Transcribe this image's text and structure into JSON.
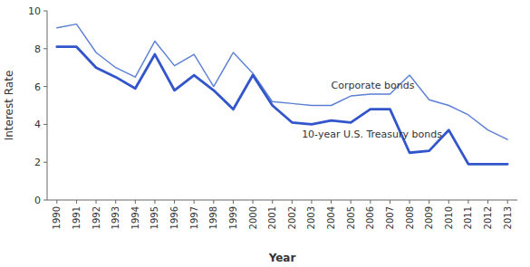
{
  "chart_data": {
    "type": "line",
    "x": [
      1990,
      1991,
      1992,
      1993,
      1994,
      1995,
      1996,
      1997,
      1998,
      1999,
      2000,
      2001,
      2002,
      2003,
      2004,
      2005,
      2006,
      2007,
      2008,
      2009,
      2010,
      2011,
      2012,
      2013
    ],
    "series": [
      {
        "color": "#5b7fd4",
        "values": [
          9.1,
          9.3,
          7.8,
          7.0,
          6.5,
          8.4,
          7.1,
          7.7,
          6.0,
          7.8,
          6.7,
          5.2,
          5.1,
          5.0,
          5.0,
          5.5,
          5.6,
          5.6,
          6.6,
          5.3,
          5.0,
          4.5,
          3.7,
          3.2
        ]
      },
      {
        "color": "#3355cc",
        "values": [
          8.1,
          8.1,
          7.0,
          6.5,
          5.9,
          7.7,
          5.8,
          6.6,
          5.8,
          4.8,
          6.6,
          5.0,
          4.1,
          4.0,
          4.2,
          4.1,
          4.8,
          4.8,
          2.5,
          2.6,
          3.7,
          1.9,
          1.9,
          1.9
        ]
      }
    ],
    "annotations": [
      {
        "text": "Corporate bonds",
        "x": 2004.0,
        "y": 5.9
      },
      {
        "text": "10-year U.S. Treasury bonds",
        "x": 2002.5,
        "y": 3.3
      }
    ],
    "x_label": "Year",
    "y_label": "Interest Rate",
    "xlim": [
      1989.5,
      2013.5
    ],
    "xticks": [
      1990,
      1991,
      1992,
      1993,
      1994,
      1995,
      1996,
      1997,
      1998,
      1999,
      2000,
      2001,
      2002,
      2003,
      2004,
      2005,
      2006,
      2007,
      2008,
      2009,
      2010,
      2011,
      2012,
      2013
    ],
    "ylim": [
      0,
      10
    ],
    "yticks": [
      0,
      2,
      4,
      6,
      8,
      10
    ],
    "grid": false
  }
}
